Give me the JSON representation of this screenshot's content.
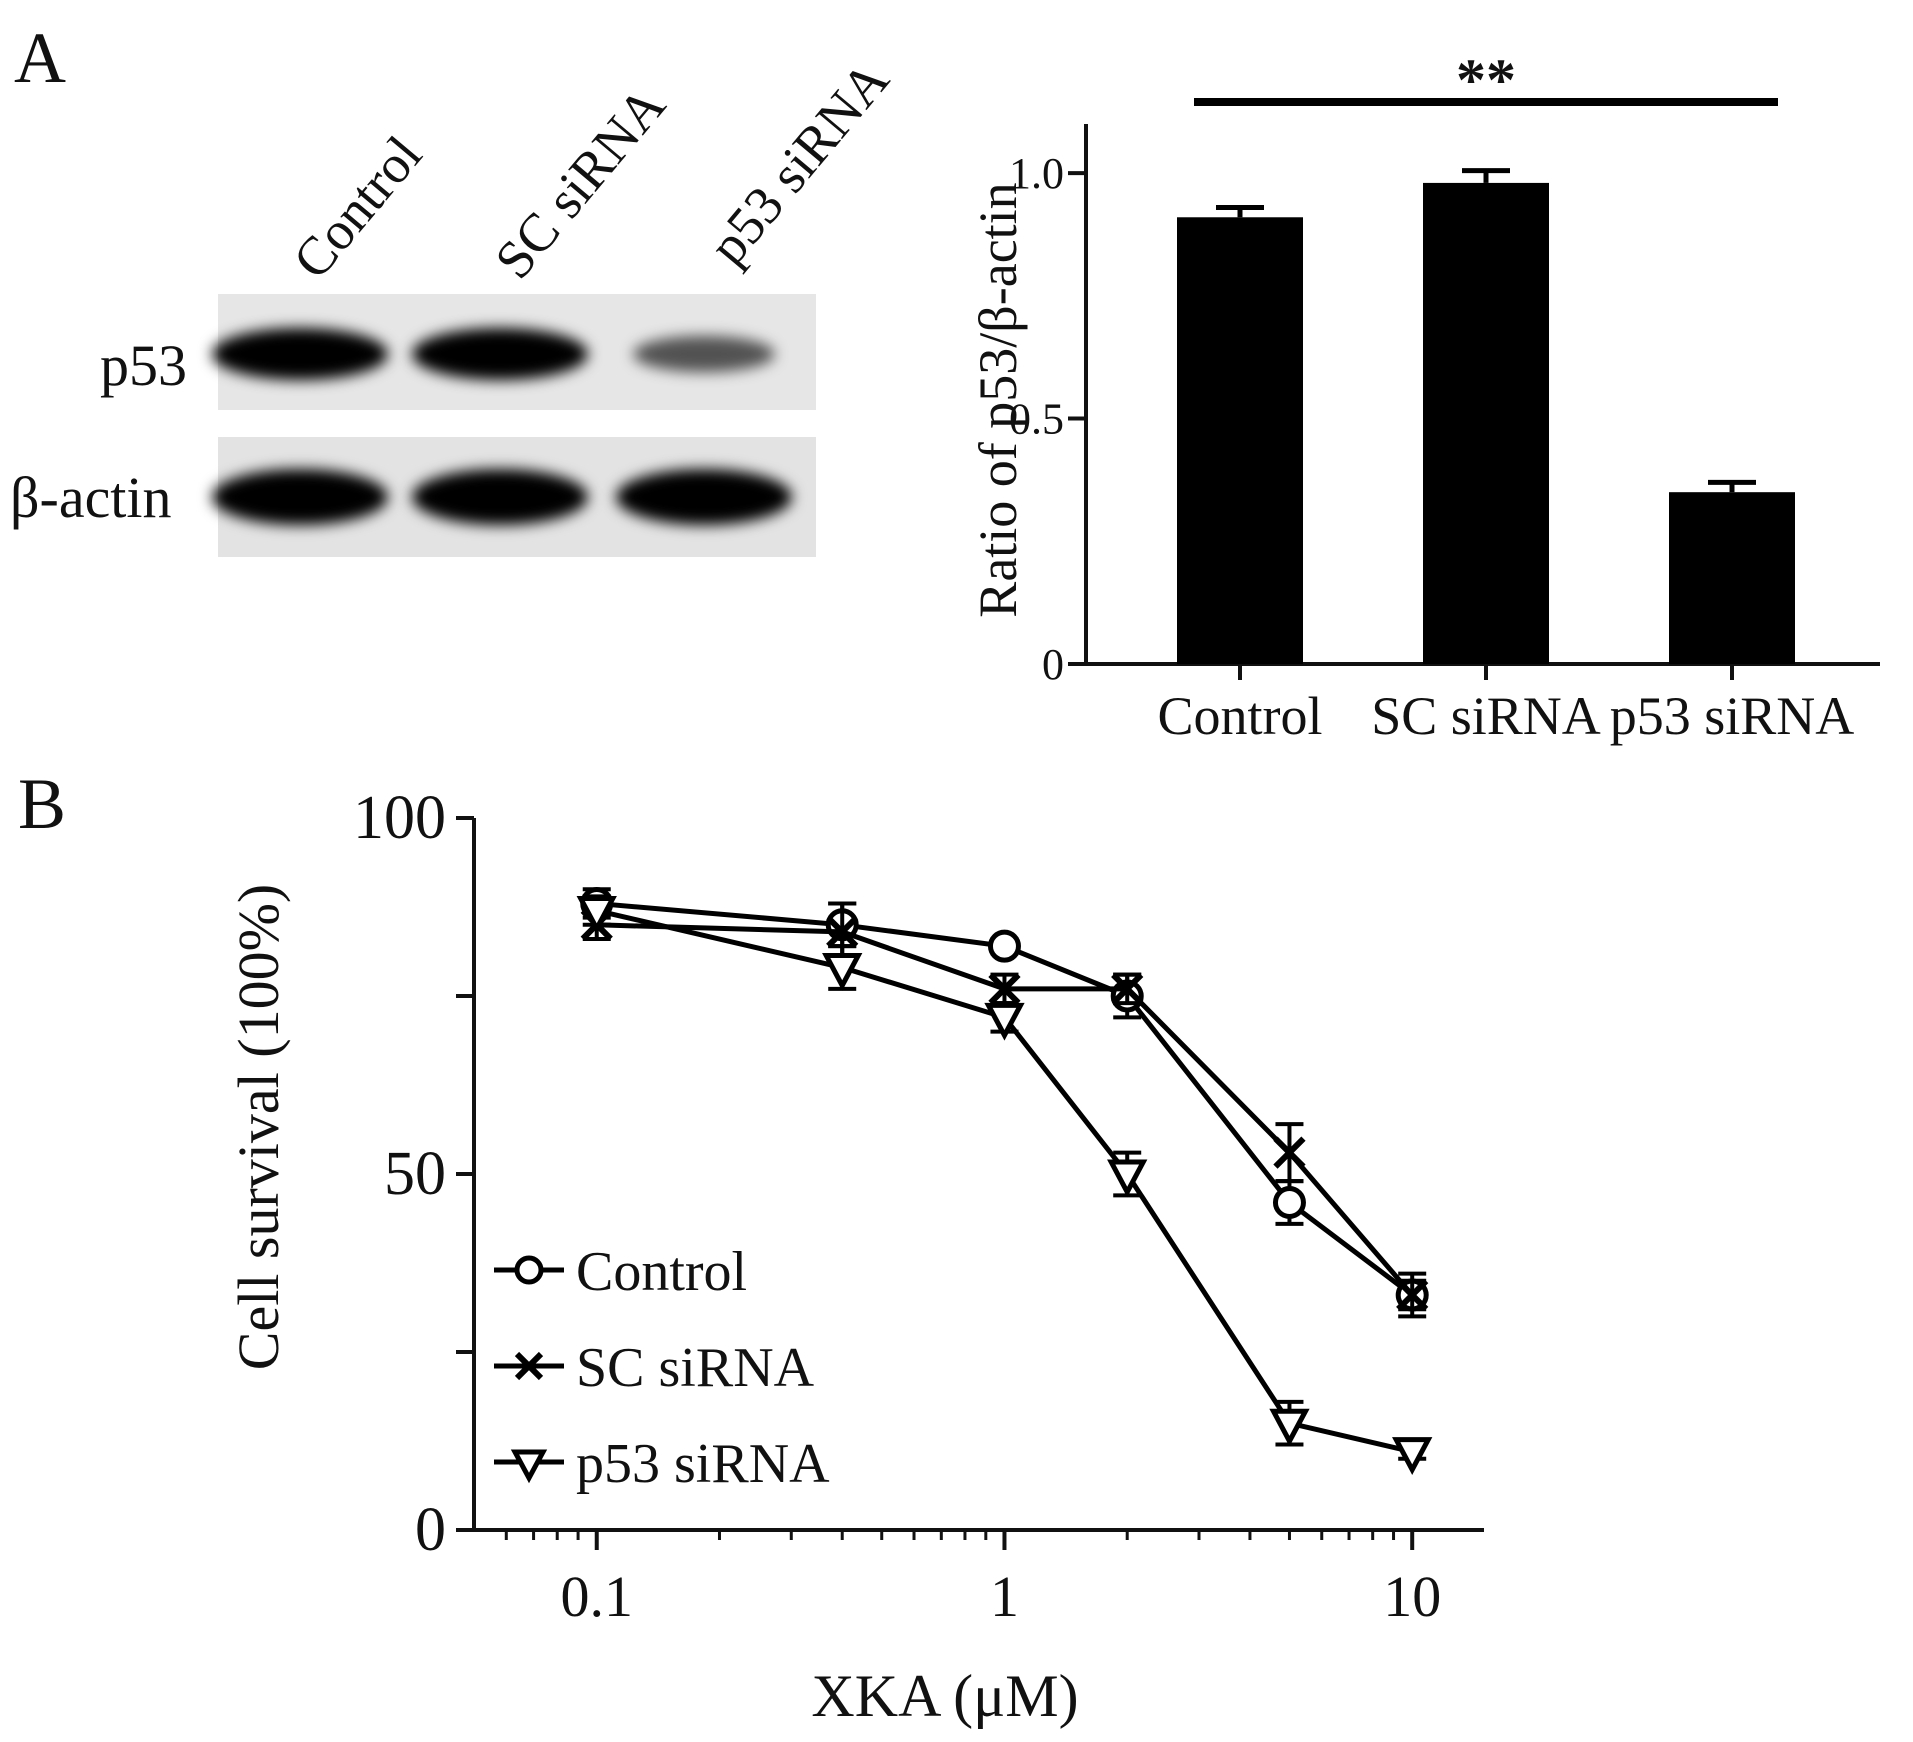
{
  "panels": {
    "a_label": "A",
    "b_label": "B"
  },
  "blot": {
    "lanes": [
      "Control",
      "SC siRNA",
      "p53 siRNA"
    ],
    "rows": [
      {
        "label": "p53",
        "band_intensity": [
          1.0,
          1.0,
          0.45
        ]
      },
      {
        "label": "β-actin",
        "band_intensity": [
          1.0,
          1.0,
          1.0
        ]
      }
    ]
  },
  "colors": {
    "ink": "#111111",
    "bar": "#000000",
    "blot_bg": "#e6e6e6"
  },
  "chart_data": [
    {
      "type": "bar",
      "ylabel": "Ratio of p53/β-actin",
      "categories": [
        "Control",
        "SC siRNA",
        "p53 siRNA"
      ],
      "values": [
        0.91,
        0.98,
        0.35
      ],
      "errors": [
        0.02,
        0.025,
        0.02
      ],
      "ylim": [
        0,
        1.1
      ],
      "yticks": [
        0,
        0.5,
        1.0
      ],
      "ytick_labels": [
        "0",
        "0.5",
        "1.0"
      ],
      "significance": "**"
    },
    {
      "type": "line",
      "xscale": "log",
      "xlabel": "XKA (μM)",
      "ylabel": "Cell survival (100%)",
      "xlim": [
        0.05,
        15
      ],
      "ylim": [
        0,
        100
      ],
      "xticks": [
        0.1,
        1,
        10
      ],
      "xtick_labels": [
        "0.1",
        "1",
        "10"
      ],
      "yticks": [
        0,
        25,
        50,
        75,
        100
      ],
      "ytick_labels": [
        "0",
        "",
        "50",
        "",
        "100"
      ],
      "x": [
        0.1,
        0.4,
        1,
        2,
        5,
        10
      ],
      "legend_position": "lower-left",
      "series": [
        {
          "name": "Control",
          "marker": "circle",
          "values": [
            88,
            85,
            82,
            75,
            46,
            33
          ],
          "errors": [
            2,
            3,
            1,
            3,
            3,
            2
          ]
        },
        {
          "name": "SC siRNA",
          "marker": "x",
          "values": [
            85,
            84,
            76,
            76,
            53,
            33
          ],
          "errors": [
            2,
            4,
            2,
            2,
            4,
            3
          ]
        },
        {
          "name": "p53 siRNA",
          "marker": "triangle-down",
          "values": [
            87,
            79,
            72,
            50,
            15,
            11
          ],
          "errors": [
            2,
            3,
            2,
            3,
            3,
            1
          ]
        }
      ]
    }
  ]
}
